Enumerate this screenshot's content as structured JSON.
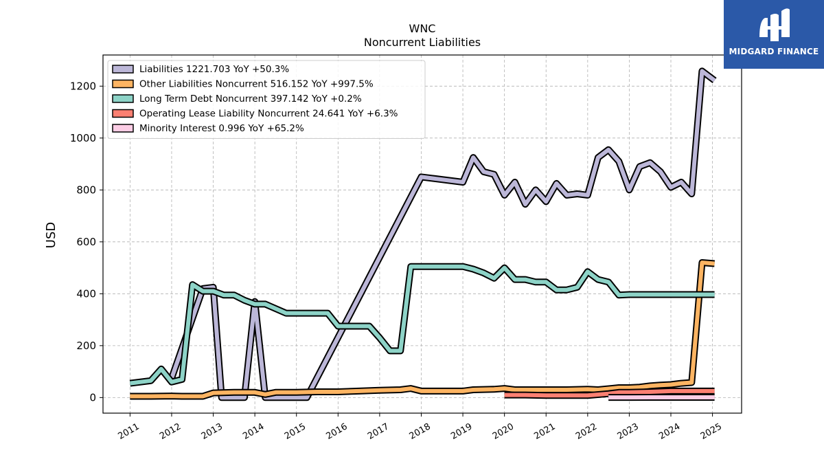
{
  "chart_data": {
    "type": "line",
    "title": "WNC",
    "subtitle": "Noncurrent  Liabilities",
    "ylabel": "USD",
    "xlabel": "",
    "ylim": [
      -60,
      1320
    ],
    "xlim": [
      2010.35,
      2025.7
    ],
    "yticks": [
      0,
      200,
      400,
      600,
      800,
      1000,
      1200
    ],
    "xticks": [
      "2011",
      "2012",
      "2013",
      "2014",
      "2015",
      "2016",
      "2017",
      "2018",
      "2019",
      "2020",
      "2021",
      "2022",
      "2023",
      "2024",
      "2025"
    ],
    "grid": true,
    "legend_position": "top-left",
    "series": [
      {
        "name": "Liabilities  1221.703 YoY +50.3%",
        "color": "#bcb7d8",
        "x": [
          2012.0,
          2012.75,
          2013.0,
          2013.2,
          2013.75,
          2014.0,
          2014.25,
          2015.25,
          2018.0,
          2019.0,
          2019.25,
          2019.5,
          2019.75,
          2020.0,
          2020.25,
          2020.5,
          2020.75,
          2021.0,
          2021.25,
          2021.5,
          2021.75,
          2022.0,
          2022.25,
          2022.5,
          2022.75,
          2023.0,
          2023.25,
          2023.5,
          2023.75,
          2024.0,
          2024.25,
          2024.5,
          2024.75,
          2025.05
        ],
        "values": [
          75,
          420,
          425,
          0,
          0,
          370,
          0,
          0,
          850,
          830,
          925,
          870,
          860,
          780,
          830,
          745,
          800,
          755,
          825,
          780,
          785,
          780,
          925,
          955,
          910,
          800,
          890,
          905,
          870,
          810,
          830,
          785,
          1258,
          1222
        ]
      },
      {
        "name": "Other Liabilities Noncurrent  516.152 YoY +997.5%",
        "color": "#fdb462",
        "x": [
          2011.0,
          2011.5,
          2012.0,
          2012.25,
          2012.75,
          2013.0,
          2013.5,
          2014.0,
          2014.25,
          2014.5,
          2015.0,
          2015.5,
          2016.0,
          2016.5,
          2017.0,
          2017.5,
          2017.75,
          2018.0,
          2018.5,
          2019.0,
          2019.25,
          2019.75,
          2020.0,
          2020.25,
          2020.75,
          2021.0,
          2021.5,
          2022.0,
          2022.25,
          2022.75,
          2023.0,
          2023.25,
          2023.5,
          2023.75,
          2024.0,
          2024.25,
          2024.5,
          2024.75,
          2025.05
        ],
        "values": [
          5,
          5,
          6,
          5,
          5,
          18,
          20,
          20,
          12,
          20,
          20,
          22,
          22,
          25,
          28,
          30,
          35,
          25,
          25,
          25,
          30,
          32,
          35,
          30,
          30,
          30,
          30,
          32,
          30,
          38,
          38,
          40,
          45,
          48,
          50,
          55,
          58,
          520,
          516
        ]
      },
      {
        "name": "Long Term Debt Noncurrent  397.142 YoY +0.2%",
        "color": "#8dd3c7",
        "x": [
          2011.0,
          2011.5,
          2011.75,
          2012.0,
          2012.25,
          2012.5,
          2012.75,
          2013.0,
          2013.25,
          2013.5,
          2013.75,
          2014.0,
          2014.25,
          2014.75,
          2015.0,
          2015.25,
          2015.5,
          2015.75,
          2016.0,
          2016.75,
          2017.0,
          2017.25,
          2017.5,
          2017.75,
          2018.0,
          2018.5,
          2019.0,
          2019.25,
          2019.5,
          2019.75,
          2020.0,
          2020.25,
          2020.5,
          2020.75,
          2021.0,
          2021.25,
          2021.5,
          2021.75,
          2022.0,
          2022.25,
          2022.5,
          2022.75,
          2023.0,
          2023.5,
          2024.0,
          2024.5,
          2025.05
        ],
        "values": [
          55,
          65,
          110,
          60,
          70,
          435,
          410,
          410,
          395,
          395,
          375,
          360,
          360,
          325,
          325,
          325,
          325,
          325,
          275,
          275,
          230,
          180,
          180,
          505,
          505,
          505,
          505,
          495,
          480,
          460,
          500,
          455,
          455,
          445,
          445,
          415,
          415,
          425,
          485,
          455,
          445,
          395,
          397,
          397,
          397,
          397,
          397
        ]
      },
      {
        "name": "Operating Lease Liability Noncurrent  24.641 YoY +6.3%",
        "color": "#fb8072",
        "x": [
          2020.0,
          2020.5,
          2021.0,
          2021.5,
          2022.0,
          2022.5,
          2022.75,
          2023.0,
          2023.5,
          2024.0,
          2024.5,
          2025.05
        ],
        "values": [
          10,
          10,
          8,
          8,
          8,
          15,
          20,
          20,
          22,
          25,
          25,
          25
        ]
      },
      {
        "name": "Minority Interest  0.996 YoY +65.2%",
        "color": "#fccde5",
        "x": [
          2022.5,
          2023.0,
          2023.5,
          2024.0,
          2024.5,
          2025.05
        ],
        "values": [
          0.6,
          0.7,
          0.8,
          0.9,
          1.0,
          1.0
        ]
      }
    ]
  },
  "logo": {
    "text": "MIDGARD FINANCE"
  }
}
